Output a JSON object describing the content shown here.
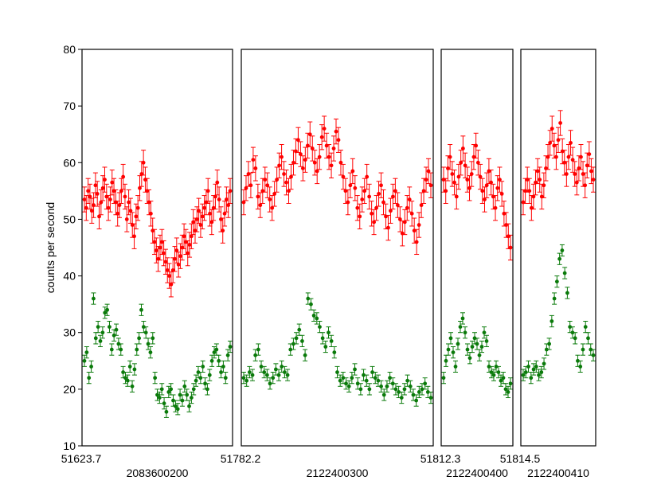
{
  "chart_data": {
    "type": "scatter",
    "ylabel": "counts per second",
    "ylim": [
      10,
      80
    ],
    "yticks": [
      10,
      20,
      30,
      40,
      50,
      60,
      70,
      80
    ],
    "series_colors": [
      "#ff0000",
      "#0a7a0a"
    ],
    "panels": [
      {
        "obs_id": "2083600200",
        "x_start_label": "51623.7",
        "x_end_label": "",
        "series": [
          {
            "values": [
              53.5,
              52.0,
              55.0,
              54.0,
              51.5,
              52.5,
              56.0,
              54.5,
              50.5,
              53.0,
              55.5,
              57.0,
              54.0,
              52.0,
              53.5,
              56.5,
              55.0,
              53.0,
              51.0,
              52.5,
              55.0,
              57.5,
              54.0,
              50.0,
              53.0,
              51.5,
              49.0,
              47.0,
              50.5,
              52.0,
              55.5,
              58.0,
              60.0,
              57.0,
              55.0,
              53.0,
              51.0,
              48.0,
              46.0,
              44.5,
              43.0,
              45.0,
              46.0,
              44.0,
              42.5,
              41.0,
              40.0,
              38.5,
              41.0,
              43.0,
              44.5,
              42.0,
              43.5,
              45.0,
              47.0,
              46.0,
              44.0,
              45.5,
              47.0,
              49.5,
              48.0,
              50.0,
              51.5,
              49.0,
              50.5,
              52.0,
              53.0,
              55.0,
              51.0,
              49.5,
              52.0,
              54.0,
              56.5,
              53.5,
              50.0,
              48.0,
              51.0,
              53.5,
              52.5,
              55.0
            ]
          },
          {
            "values": [
              25.0,
              26.5,
              22.0,
              24.0,
              36.0,
              29.0,
              31.0,
              28.5,
              30.0,
              33.5,
              34.0,
              31.0,
              27.0,
              29.5,
              30.5,
              28.0,
              27.0,
              23.0,
              22.0,
              21.5,
              24.0,
              20.5,
              23.5,
              27.0,
              29.0,
              34.0,
              31.0,
              30.0,
              28.0,
              26.5,
              29.0,
              22.0,
              19.0,
              18.5,
              20.0,
              17.5,
              16.0,
              19.5,
              20.0,
              18.0,
              17.0,
              16.5,
              19.0,
              18.0,
              20.5,
              19.0,
              17.0,
              18.5,
              20.0,
              21.5,
              23.0,
              22.0,
              24.0,
              21.0,
              20.0,
              22.5,
              25.0,
              26.5,
              27.0,
              25.0,
              23.0,
              24.0,
              22.0,
              26.0,
              27.5
            ]
          }
        ]
      },
      {
        "obs_id": "2122400300",
        "x_start_label": "51782.2",
        "x_end_label": "",
        "series": [
          {
            "values": [
              53.0,
              55.5,
              58.0,
              56.0,
              60.5,
              59.0,
              54.0,
              52.5,
              55.0,
              57.0,
              56.0,
              53.5,
              52.0,
              54.5,
              57.0,
              59.5,
              61.0,
              58.0,
              56.5,
              55.0,
              57.5,
              60.0,
              62.0,
              64.0,
              61.5,
              59.0,
              60.5,
              63.0,
              65.0,
              62.5,
              60.0,
              58.5,
              61.0,
              64.5,
              66.0,
              63.0,
              61.0,
              59.5,
              62.5,
              65.5,
              64.0,
              60.0,
              57.5,
              55.0,
              53.0,
              56.0,
              58.5,
              55.5,
              52.0,
              50.5,
              53.5,
              55.0,
              57.5,
              54.0,
              51.0,
              49.5,
              52.0,
              54.5,
              56.0,
              53.0,
              50.5,
              48.5,
              51.5,
              54.0,
              55.0,
              52.5,
              50.0,
              47.5,
              49.5,
              52.0,
              53.5,
              51.0,
              48.0,
              46.0,
              49.0,
              52.5,
              55.0,
              57.0,
              58.5,
              56.0
            ]
          },
          {
            "values": [
              22.0,
              21.5,
              23.0,
              22.5,
              26.0,
              27.0,
              24.0,
              23.0,
              22.5,
              21.0,
              22.0,
              23.5,
              22.5,
              24.0,
              23.0,
              22.5,
              27.0,
              28.0,
              29.0,
              30.5,
              28.5,
              26.0,
              36.0,
              35.0,
              33.0,
              32.5,
              31.0,
              29.0,
              27.5,
              30.0,
              28.5,
              26.5,
              23.0,
              21.5,
              22.0,
              21.0,
              20.5,
              22.0,
              23.5,
              21.0,
              20.0,
              22.5,
              21.5,
              20.0,
              23.0,
              22.0,
              21.5,
              20.5,
              19.0,
              20.5,
              22.0,
              21.0,
              20.0,
              19.5,
              18.5,
              20.0,
              21.5,
              20.5,
              19.0,
              18.0,
              19.5,
              20.0,
              21.0,
              19.5,
              18.5
            ]
          }
        ]
      },
      {
        "obs_id": "2122400400",
        "x_start_label": "51812.3",
        "x_end_label": "",
        "series": [
          {
            "values": [
              57.0,
              55.0,
              59.0,
              61.0,
              58.0,
              56.5,
              54.0,
              57.5,
              60.0,
              62.5,
              59.5,
              57.0,
              55.5,
              58.0,
              61.0,
              63.0,
              60.0,
              57.5,
              55.0,
              53.5,
              56.0,
              58.5,
              56.5,
              54.0,
              52.0,
              55.5,
              57.0,
              54.5,
              51.0,
              49.0,
              47.0,
              45.0
            ]
          },
          {
            "values": [
              22.0,
              25.0,
              27.0,
              29.0,
              26.5,
              24.0,
              28.0,
              31.0,
              32.5,
              30.0,
              27.0,
              25.5,
              27.5,
              29.0,
              28.0,
              26.0,
              27.5,
              30.0,
              28.5,
              24.0,
              23.0,
              22.5,
              24.0,
              23.0,
              21.5,
              22.0,
              20.0,
              19.5,
              21.0
            ]
          }
        ]
      },
      {
        "obs_id": "2122400410",
        "x_start_label": "51814.5",
        "x_end_label": "",
        "series": [
          {
            "values": [
              53.0,
              55.0,
              57.0,
              55.0,
              52.0,
              54.0,
              56.5,
              58.5,
              57.0,
              54.0,
              56.0,
              59.0,
              61.0,
              63.5,
              66.0,
              63.0,
              61.0,
              64.0,
              67.0,
              62.0,
              60.0,
              58.0,
              61.0,
              63.5,
              60.5,
              58.0,
              56.5,
              59.0,
              61.0,
              58.0,
              56.0,
              59.5,
              61.5,
              58.5,
              57.0
            ]
          },
          {
            "values": [
              22.5,
              23.0,
              24.0,
              22.0,
              23.5,
              24.0,
              22.5,
              23.0,
              24.5,
              27.0,
              28.0,
              32.0,
              36.0,
              39.0,
              43.0,
              44.5,
              40.5,
              37.0,
              31.0,
              30.0,
              29.0,
              25.0,
              24.0,
              27.0,
              31.0,
              29.0,
              27.0,
              26.0
            ]
          }
        ]
      }
    ]
  }
}
